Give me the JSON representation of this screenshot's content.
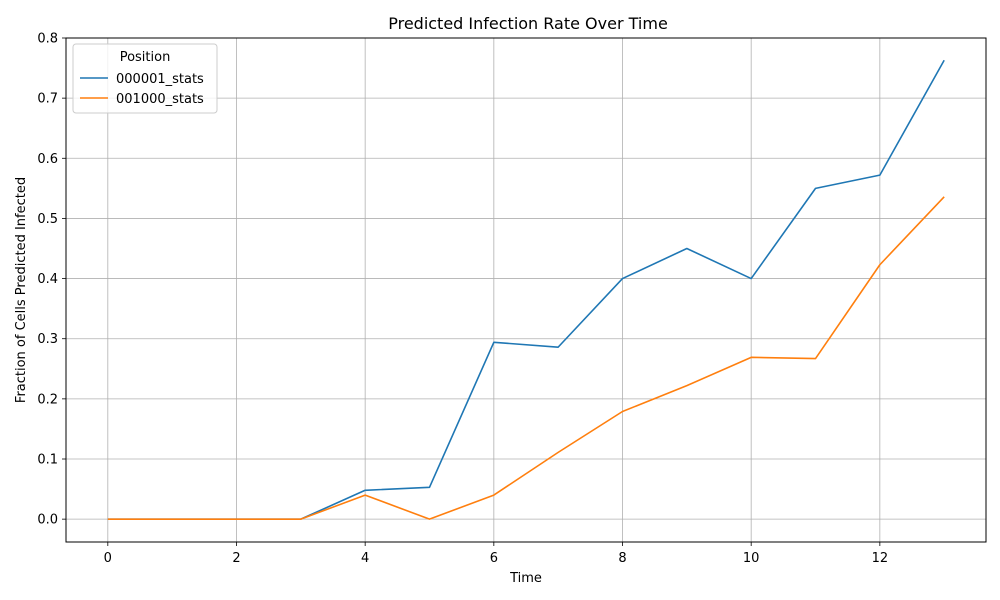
{
  "chart_data": {
    "type": "line",
    "title": "Predicted Infection Rate Over Time",
    "xlabel": "Time",
    "ylabel": "Fraction of Cells Predicted Infected",
    "x": [
      0,
      1,
      2,
      3,
      4,
      5,
      6,
      7,
      8,
      9,
      10,
      11,
      12,
      13
    ],
    "xlim": [
      -0.65,
      13.65
    ],
    "ylim": [
      -0.038,
      0.8
    ],
    "xticks": [
      0,
      2,
      4,
      6,
      8,
      10,
      12
    ],
    "yticks": [
      0.0,
      0.1,
      0.2,
      0.3,
      0.4,
      0.5,
      0.6,
      0.7,
      0.8
    ],
    "xtick_labels": [
      "0",
      "2",
      "4",
      "6",
      "8",
      "10",
      "12"
    ],
    "ytick_labels": [
      "0.0",
      "0.1",
      "0.2",
      "0.3",
      "0.4",
      "0.5",
      "0.6",
      "0.7",
      "0.8"
    ],
    "grid": true,
    "legend": {
      "title": "Position",
      "placement": "top-left"
    },
    "series": [
      {
        "name": "000001_stats",
        "color": "#1f77b4",
        "values": [
          0.0,
          0.0,
          0.0,
          0.0,
          0.048,
          0.053,
          0.294,
          0.286,
          0.4,
          0.45,
          0.4,
          0.55,
          0.572,
          0.763
        ]
      },
      {
        "name": "001000_stats",
        "color": "#ff7f0e",
        "values": [
          0.0,
          0.0,
          0.0,
          0.0,
          0.04,
          0.0,
          0.04,
          0.111,
          0.179,
          0.222,
          0.269,
          0.267,
          0.423,
          0.536
        ]
      }
    ]
  }
}
